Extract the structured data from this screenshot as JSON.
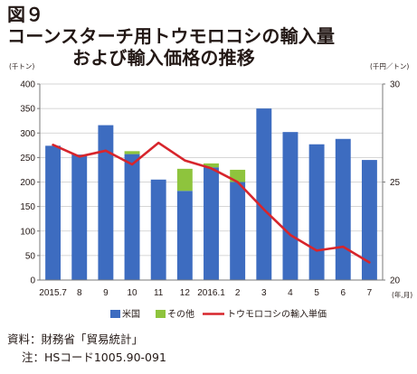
{
  "title": {
    "figure_no": "図９",
    "line1": "コーンスターチ用トウモロコシの輸入量",
    "line2": "および輸入価格の推移"
  },
  "chart_data": {
    "type": "bar",
    "stacked": true,
    "categories": [
      "2015.7",
      "8",
      "9",
      "10",
      "11",
      "12",
      "2016.1",
      "2",
      "3",
      "4",
      "5",
      "6",
      "7"
    ],
    "x_unit": "(年,月)",
    "series": [
      {
        "name": "米国",
        "values": [
          274,
          256,
          316,
          257,
          205,
          182,
          230,
          200,
          350,
          302,
          277,
          288,
          245
        ],
        "color": "#3d6cc0",
        "axis": "left"
      },
      {
        "name": "その他",
        "values": [
          0,
          0,
          0,
          6,
          0,
          45,
          8,
          25,
          0,
          0,
          0,
          0,
          0
        ],
        "color": "#8ec43d",
        "axis": "left"
      },
      {
        "name": "トウモロコシの輸入単価",
        "type": "line",
        "values": [
          26.9,
          26.3,
          26.6,
          25.9,
          27.0,
          26.1,
          25.7,
          25.0,
          23.6,
          22.3,
          21.5,
          21.7,
          20.9
        ],
        "color": "#d7252c",
        "axis": "right"
      }
    ],
    "y_left": {
      "unit": "(千トン)",
      "ylim": [
        0,
        400
      ],
      "ticks": [
        0,
        50,
        100,
        150,
        200,
        250,
        300,
        350,
        400
      ]
    },
    "y_right": {
      "unit": "(千円／トン)",
      "ylim": [
        20,
        30
      ],
      "ticks": [
        20,
        25,
        30
      ]
    },
    "grid": true,
    "legend_position": "bottom"
  },
  "source": {
    "line1": "資料：財務省「貿易統計」",
    "line2": "注：HSコード1005.90-091"
  }
}
